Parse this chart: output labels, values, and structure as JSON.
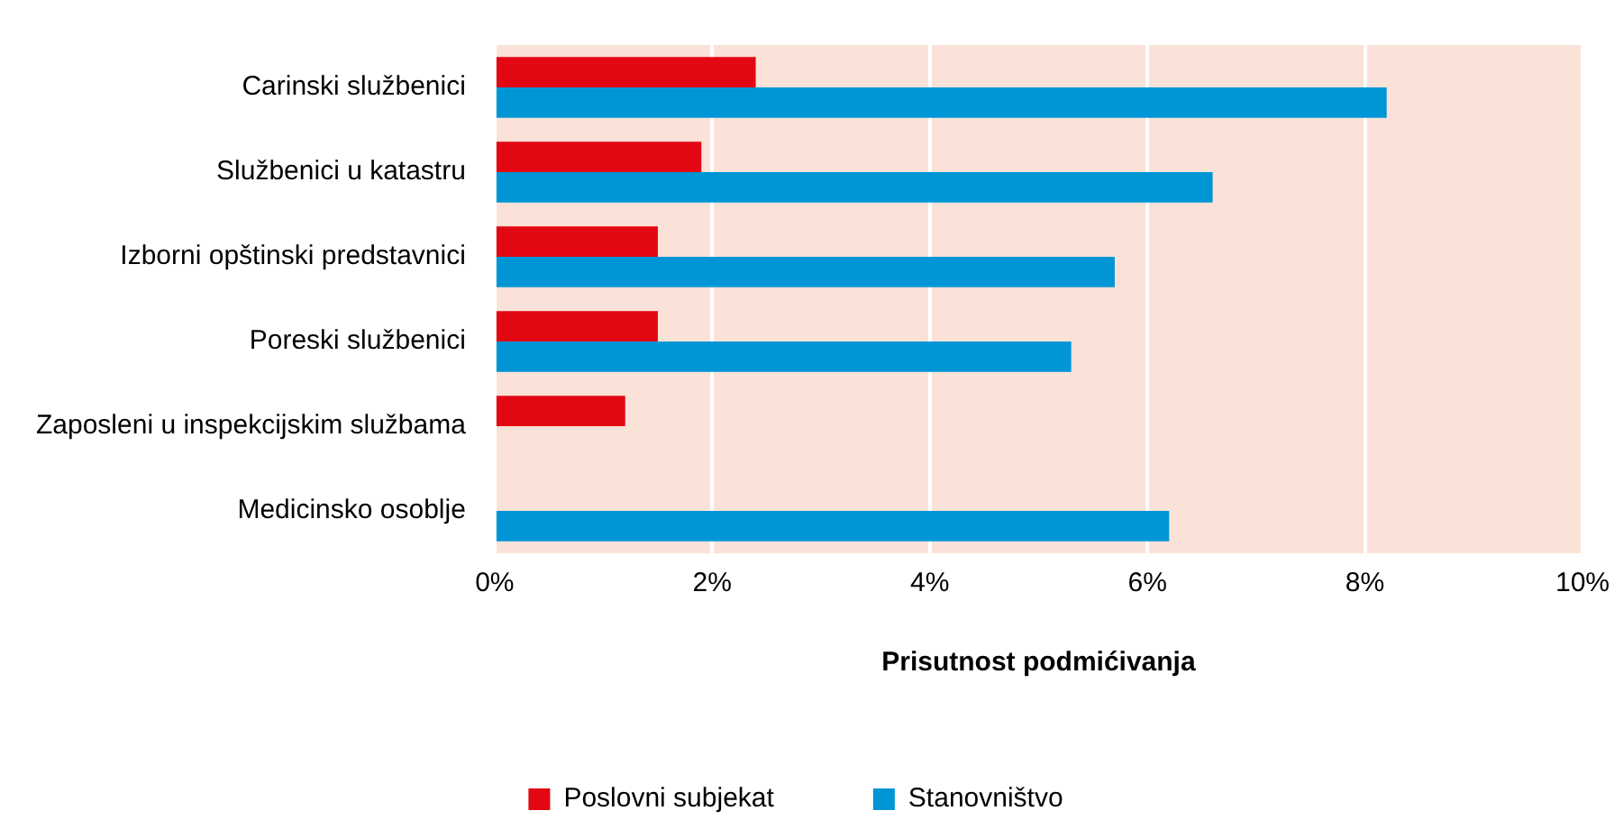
{
  "chart_data": {
    "type": "bar",
    "orientation": "horizontal",
    "xlabel": "Prisutnost podmićivanja",
    "categories": [
      "Carinski službenici",
      "Službenici u katastru",
      "Izborni opštinski predstavnici",
      "Poreski službenici",
      "Zaposleni u inspekcijskim službama",
      "Medicinsko osoblje"
    ],
    "series": [
      {
        "name": "Poslovni subjekat",
        "color": "#e30613",
        "values": [
          2.4,
          1.9,
          1.5,
          1.5,
          1.2,
          null
        ]
      },
      {
        "name": "Stanovništvo",
        "color": "#0096d6",
        "values": [
          8.2,
          6.6,
          5.7,
          5.3,
          null,
          6.2
        ]
      }
    ],
    "xlim": [
      0,
      10
    ],
    "xticks": [
      {
        "value": 0,
        "label": "0%"
      },
      {
        "value": 2,
        "label": "2%"
      },
      {
        "value": 4,
        "label": "4%"
      },
      {
        "value": 6,
        "label": "6%"
      },
      {
        "value": 8,
        "label": "8%"
      },
      {
        "value": 10,
        "label": "10%"
      }
    ],
    "grid": "x",
    "legend": "bottom"
  }
}
